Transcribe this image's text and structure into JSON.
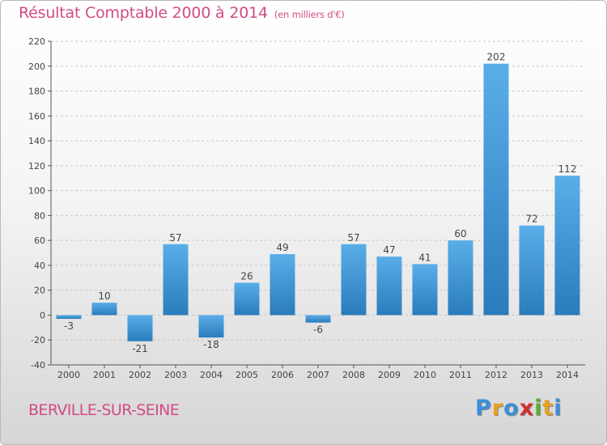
{
  "header": {
    "title": "Résultat Comptable 2000 à 2014",
    "subtitle": "(en milliers d'€)"
  },
  "footer": {
    "commune": "BERVILLE-SUR-SEINE",
    "logo_letters": [
      "P",
      "r",
      "o",
      "x",
      "i",
      "t",
      "i"
    ]
  },
  "colors": {
    "title": "#d24b87",
    "bar_light": "#5aaee8",
    "bar_dark": "#2a7cbc",
    "grid": "#c8c8c8",
    "logo": [
      "#3a8fd8",
      "#e8a020",
      "#3a8fd8",
      "#d03030",
      "#58b030",
      "#e8a020",
      "#3a8fd8"
    ]
  },
  "chart_data": {
    "type": "bar",
    "categories": [
      "2000",
      "2001",
      "2002",
      "2003",
      "2004",
      "2005",
      "2006",
      "2007",
      "2008",
      "2009",
      "2010",
      "2011",
      "2012",
      "2013",
      "2014"
    ],
    "values": [
      -3,
      10,
      -21,
      57,
      -18,
      26,
      49,
      -6,
      57,
      47,
      41,
      60,
      202,
      72,
      112
    ],
    "ylim": [
      -40,
      220
    ],
    "yticks": [
      -40,
      -20,
      0,
      20,
      40,
      60,
      80,
      100,
      120,
      140,
      160,
      180,
      200,
      220
    ],
    "grid": true,
    "legend": "none"
  }
}
